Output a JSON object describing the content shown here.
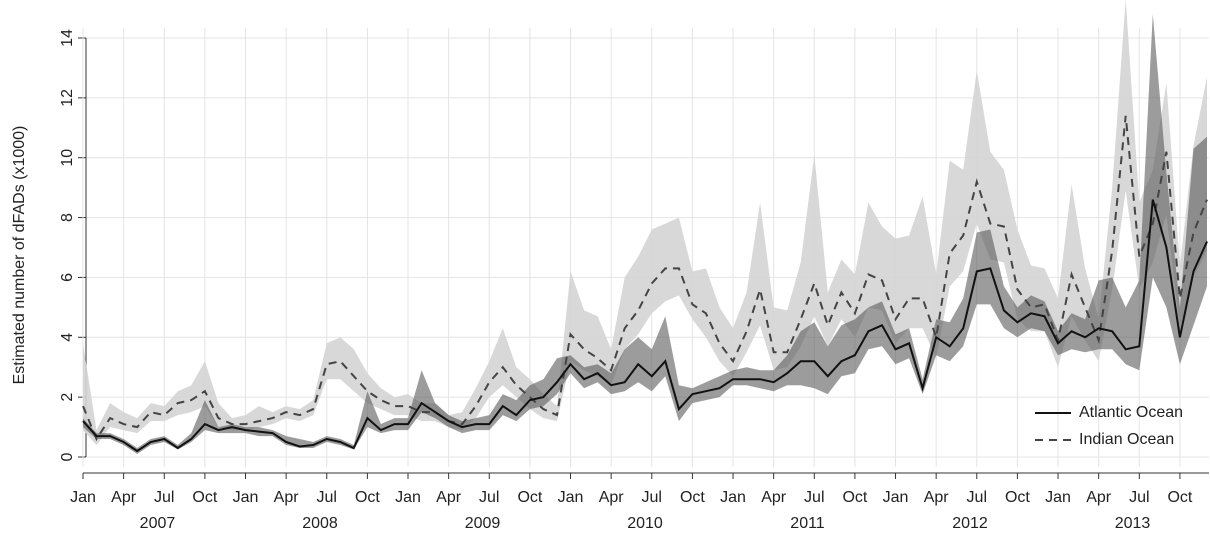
{
  "chart_data": {
    "type": "line",
    "y_label": "Estimated number of dFADs (x1000)",
    "categories": [
      "Jan",
      null,
      null,
      "Apr",
      null,
      null,
      "Jul",
      null,
      null,
      "Oct",
      null,
      null,
      "Jan",
      null,
      null,
      "Apr",
      null,
      null,
      "Jul",
      null,
      null,
      "Oct",
      null,
      null,
      "Jan",
      null,
      null,
      "Apr",
      null,
      null,
      "Jul",
      null,
      null,
      "Oct",
      null,
      null,
      "Jan",
      null,
      null,
      "Apr",
      null,
      null,
      "Jul",
      null,
      null,
      "Oct",
      null,
      null,
      "Jan",
      null,
      null,
      "Apr",
      null,
      null,
      "Jul",
      null,
      null,
      "Oct",
      null,
      null,
      "Jan",
      null,
      null,
      "Apr",
      null,
      null,
      "Jul",
      null,
      null,
      "Oct",
      null,
      null,
      "Jan",
      null,
      null,
      "Apr",
      null,
      null,
      "Jul",
      null,
      null,
      "Oct",
      null,
      null
    ],
    "years": [
      "2007",
      "2008",
      "2009",
      "2010",
      "2011",
      "2012",
      "2013"
    ],
    "ylim": [
      0,
      14
    ],
    "yticks": [
      0,
      2,
      4,
      6,
      8,
      10,
      12,
      14
    ],
    "grid": true,
    "legend": "bottom-right",
    "series": [
      {
        "name": "Indian Ocean",
        "color": "#444444",
        "dash": true,
        "band_color": "#d4d4d4",
        "values": [
          1.7,
          0.6,
          1.3,
          1.1,
          1.0,
          1.5,
          1.4,
          1.8,
          1.9,
          2.2,
          1.3,
          1.1,
          1.1,
          1.2,
          1.3,
          1.5,
          1.4,
          1.6,
          3.1,
          3.2,
          2.7,
          2.2,
          1.9,
          1.7,
          1.7,
          1.5,
          1.5,
          1.2,
          1.1,
          1.7,
          2.5,
          3.0,
          2.4,
          2.0,
          1.6,
          1.4,
          4.1,
          3.6,
          3.3,
          2.9,
          4.3,
          4.9,
          5.8,
          6.3,
          6.3,
          5.1,
          4.8,
          3.8,
          3.2,
          4.2,
          5.6,
          3.5,
          3.5,
          4.6,
          5.8,
          4.4,
          5.5,
          4.8,
          6.1,
          5.9,
          4.6,
          5.3,
          5.3,
          4.0,
          6.8,
          7.4,
          9.2,
          7.8,
          7.7,
          5.6,
          5.0,
          5.1,
          3.9,
          6.1,
          5.0,
          3.9,
          6.9,
          11.4,
          6.7,
          7.8,
          10.2,
          5.3,
          7.5,
          8.6
        ],
        "upper": [
          3.8,
          0.9,
          1.8,
          1.5,
          1.3,
          1.8,
          1.7,
          2.2,
          2.4,
          3.2,
          1.8,
          1.3,
          1.4,
          1.7,
          1.5,
          1.7,
          1.6,
          1.9,
          3.8,
          4.0,
          3.6,
          2.8,
          2.3,
          2.0,
          2.1,
          1.8,
          1.8,
          1.4,
          1.5,
          2.3,
          3.2,
          4.3,
          3.0,
          2.6,
          2.1,
          1.7,
          6.2,
          4.9,
          4.7,
          3.6,
          6.0,
          6.7,
          7.6,
          7.8,
          8.0,
          6.2,
          6.3,
          5.0,
          4.3,
          5.5,
          8.5,
          5.0,
          4.9,
          6.5,
          10.1,
          5.5,
          6.6,
          6.1,
          8.5,
          7.7,
          7.3,
          7.4,
          8.7,
          6.1,
          9.9,
          9.6,
          12.9,
          10.2,
          9.6,
          7.6,
          6.4,
          6.3,
          5.3,
          9.1,
          6.3,
          4.6,
          9.0,
          15.3,
          8.5,
          9.6,
          12.5,
          6.4,
          10.4,
          12.7
        ],
        "lower": [
          0.9,
          0.4,
          1.0,
          0.9,
          0.8,
          1.2,
          1.2,
          1.4,
          1.5,
          1.7,
          1.0,
          0.9,
          0.9,
          1.0,
          1.1,
          1.3,
          1.2,
          1.4,
          2.6,
          2.6,
          2.2,
          1.8,
          1.6,
          1.4,
          1.4,
          1.2,
          1.2,
          1.0,
          0.9,
          1.3,
          2.0,
          2.4,
          2.0,
          1.6,
          1.3,
          1.2,
          3.2,
          2.9,
          2.7,
          2.4,
          3.6,
          4.1,
          4.8,
          5.2,
          5.4,
          4.6,
          4.0,
          3.2,
          2.7,
          3.5,
          4.4,
          2.9,
          3.0,
          3.7,
          4.7,
          3.7,
          4.6,
          4.0,
          5.0,
          4.9,
          3.8,
          4.3,
          4.3,
          3.3,
          5.7,
          6.2,
          7.8,
          6.6,
          6.5,
          4.6,
          4.2,
          4.2,
          3.0,
          4.7,
          3.9,
          3.2,
          5.6,
          8.9,
          5.6,
          6.5,
          8.1,
          4.3,
          6.0,
          6.9
        ]
      },
      {
        "name": "Atlantic Ocean",
        "color": "#111111",
        "dash": false,
        "band_color": "#5a5a5a",
        "values": [
          1.2,
          0.7,
          0.7,
          0.5,
          0.2,
          0.5,
          0.6,
          0.3,
          0.6,
          1.1,
          0.9,
          1.0,
          0.9,
          0.85,
          0.8,
          0.5,
          0.35,
          0.4,
          0.6,
          0.5,
          0.3,
          1.3,
          0.9,
          1.1,
          1.1,
          1.8,
          1.5,
          1.2,
          1.0,
          1.1,
          1.1,
          1.7,
          1.4,
          1.9,
          2.0,
          2.5,
          3.1,
          2.6,
          2.8,
          2.4,
          2.5,
          3.1,
          2.7,
          3.2,
          1.6,
          2.1,
          2.2,
          2.3,
          2.6,
          2.6,
          2.6,
          2.5,
          2.8,
          3.2,
          3.2,
          2.7,
          3.2,
          3.4,
          4.2,
          4.4,
          3.6,
          3.8,
          2.3,
          4.0,
          3.7,
          4.3,
          6.2,
          6.3,
          4.9,
          4.5,
          4.8,
          4.7,
          3.8,
          4.2,
          4.0,
          4.3,
          4.2,
          3.6,
          3.7,
          8.6,
          7.0,
          4.0,
          6.2,
          7.2
        ],
        "upper": [
          1.3,
          0.8,
          0.8,
          0.6,
          0.3,
          0.6,
          0.7,
          0.4,
          0.8,
          1.9,
          1.0,
          1.1,
          1.0,
          1.0,
          0.9,
          0.7,
          0.6,
          0.5,
          0.7,
          0.6,
          0.4,
          2.2,
          1.1,
          1.3,
          1.3,
          2.9,
          1.8,
          1.4,
          1.2,
          1.3,
          1.4,
          2.1,
          1.9,
          2.4,
          2.6,
          3.3,
          3.4,
          3.0,
          3.1,
          2.8,
          3.6,
          4.0,
          3.6,
          4.7,
          2.4,
          2.3,
          2.5,
          2.7,
          2.9,
          3.0,
          2.9,
          2.9,
          3.4,
          4.2,
          4.5,
          3.7,
          4.4,
          4.6,
          5.0,
          5.2,
          4.1,
          4.3,
          2.6,
          4.6,
          4.5,
          5.3,
          7.5,
          7.6,
          5.7,
          5.0,
          5.4,
          5.2,
          4.2,
          4.8,
          4.6,
          5.9,
          6.0,
          5.0,
          5.9,
          14.8,
          9.5,
          5.0,
          10.3,
          10.7
        ],
        "lower": [
          1.0,
          0.6,
          0.6,
          0.4,
          0.1,
          0.4,
          0.5,
          0.25,
          0.5,
          0.9,
          0.8,
          0.8,
          0.8,
          0.7,
          0.7,
          0.4,
          0.3,
          0.3,
          0.5,
          0.4,
          0.25,
          1.0,
          0.8,
          0.9,
          0.9,
          1.5,
          1.3,
          1.0,
          0.8,
          0.9,
          0.9,
          1.4,
          1.2,
          1.6,
          1.7,
          2.1,
          2.8,
          2.3,
          2.5,
          2.1,
          2.2,
          2.5,
          2.2,
          2.7,
          1.2,
          1.8,
          1.9,
          2.0,
          2.4,
          2.4,
          2.3,
          2.2,
          2.4,
          2.4,
          2.3,
          2.1,
          2.7,
          2.8,
          3.6,
          3.7,
          3.1,
          3.3,
          2.1,
          3.4,
          3.2,
          3.7,
          5.1,
          5.1,
          4.3,
          4.0,
          4.3,
          4.2,
          3.4,
          3.6,
          3.5,
          3.6,
          3.6,
          3.1,
          2.9,
          6.0,
          5.0,
          3.1,
          4.4,
          5.7
        ]
      }
    ]
  }
}
